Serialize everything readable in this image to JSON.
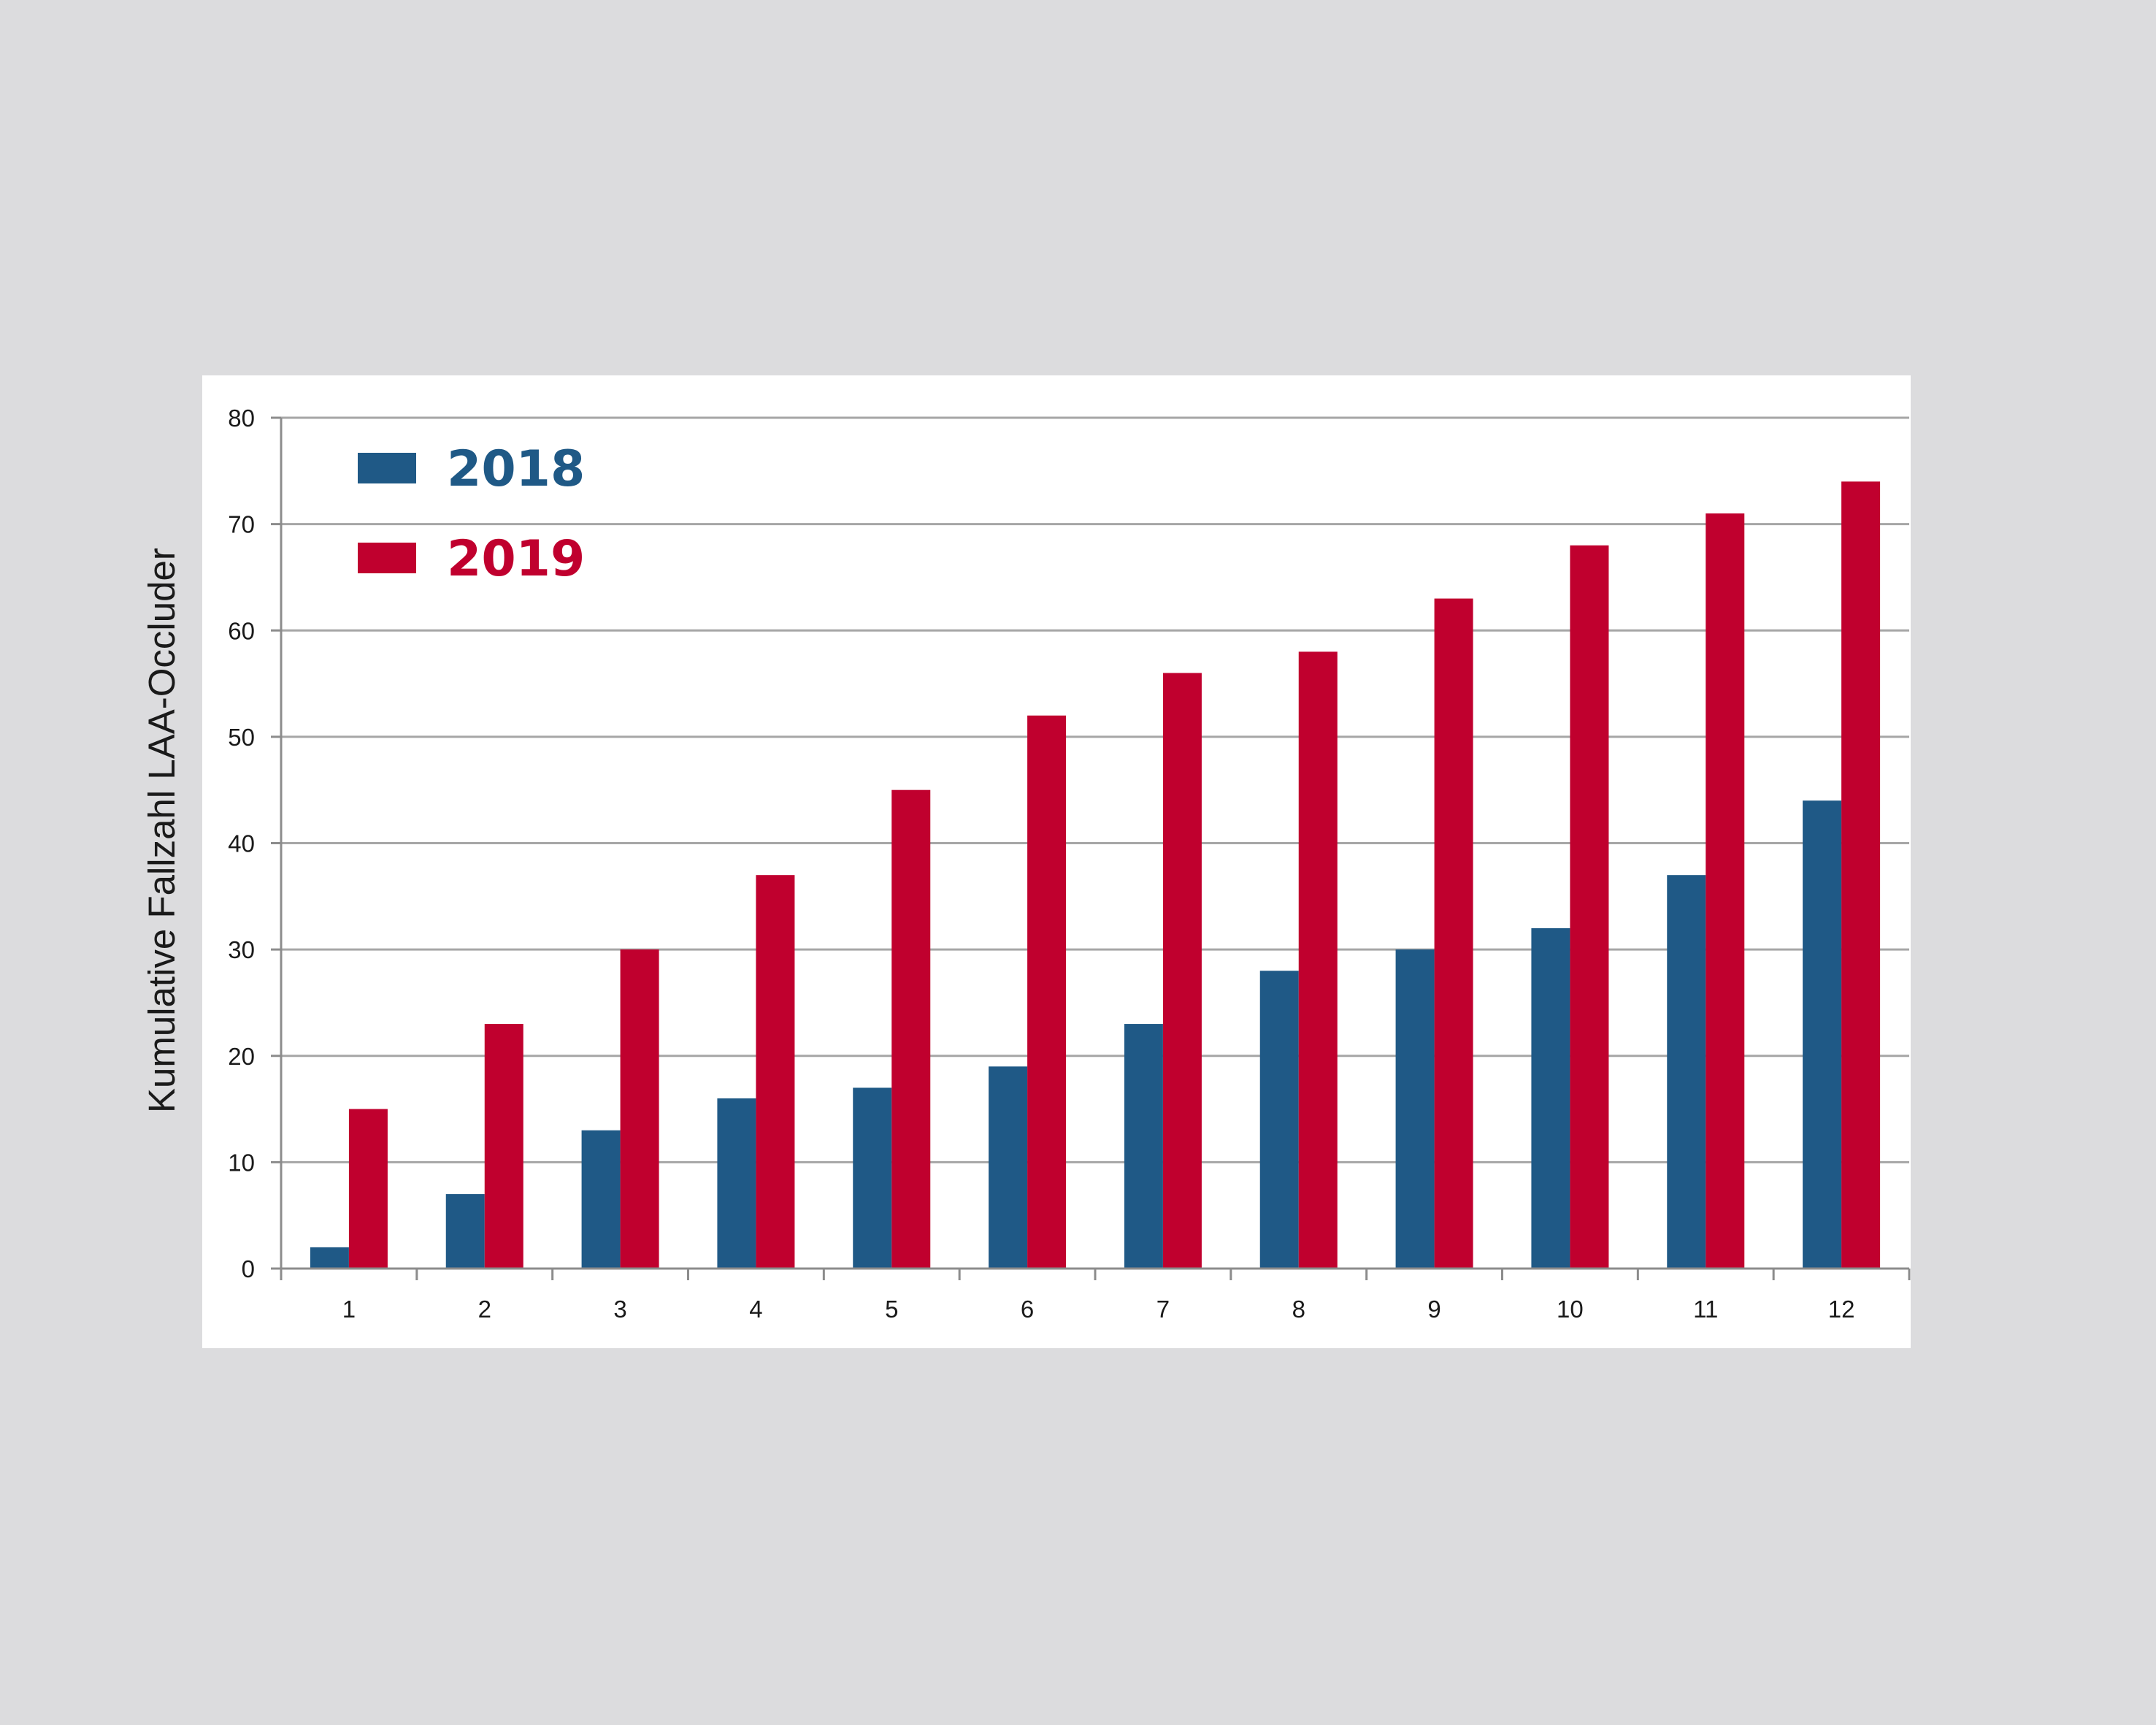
{
  "chart_data": {
    "type": "bar",
    "title": "",
    "xlabel": "",
    "ylabel": "Kumulative Fallzahl LAA-Occluder",
    "categories": [
      "1",
      "2",
      "3",
      "4",
      "5",
      "6",
      "7",
      "8",
      "9",
      "10",
      "11",
      "12"
    ],
    "ylim": [
      0,
      80
    ],
    "yticks": [
      "0",
      "10",
      "20",
      "30",
      "40",
      "50",
      "60",
      "70",
      "80"
    ],
    "grid": true,
    "legend_position": "top-left",
    "series": [
      {
        "name": "2018",
        "color": "#1f5986",
        "values": [
          2,
          7,
          13,
          16,
          17,
          19,
          23,
          28,
          30,
          32,
          37,
          44
        ]
      },
      {
        "name": "2019",
        "color": "#c0002e",
        "values": [
          15,
          23,
          30,
          37,
          45,
          52,
          56,
          58,
          63,
          68,
          71,
          74
        ]
      }
    ]
  }
}
